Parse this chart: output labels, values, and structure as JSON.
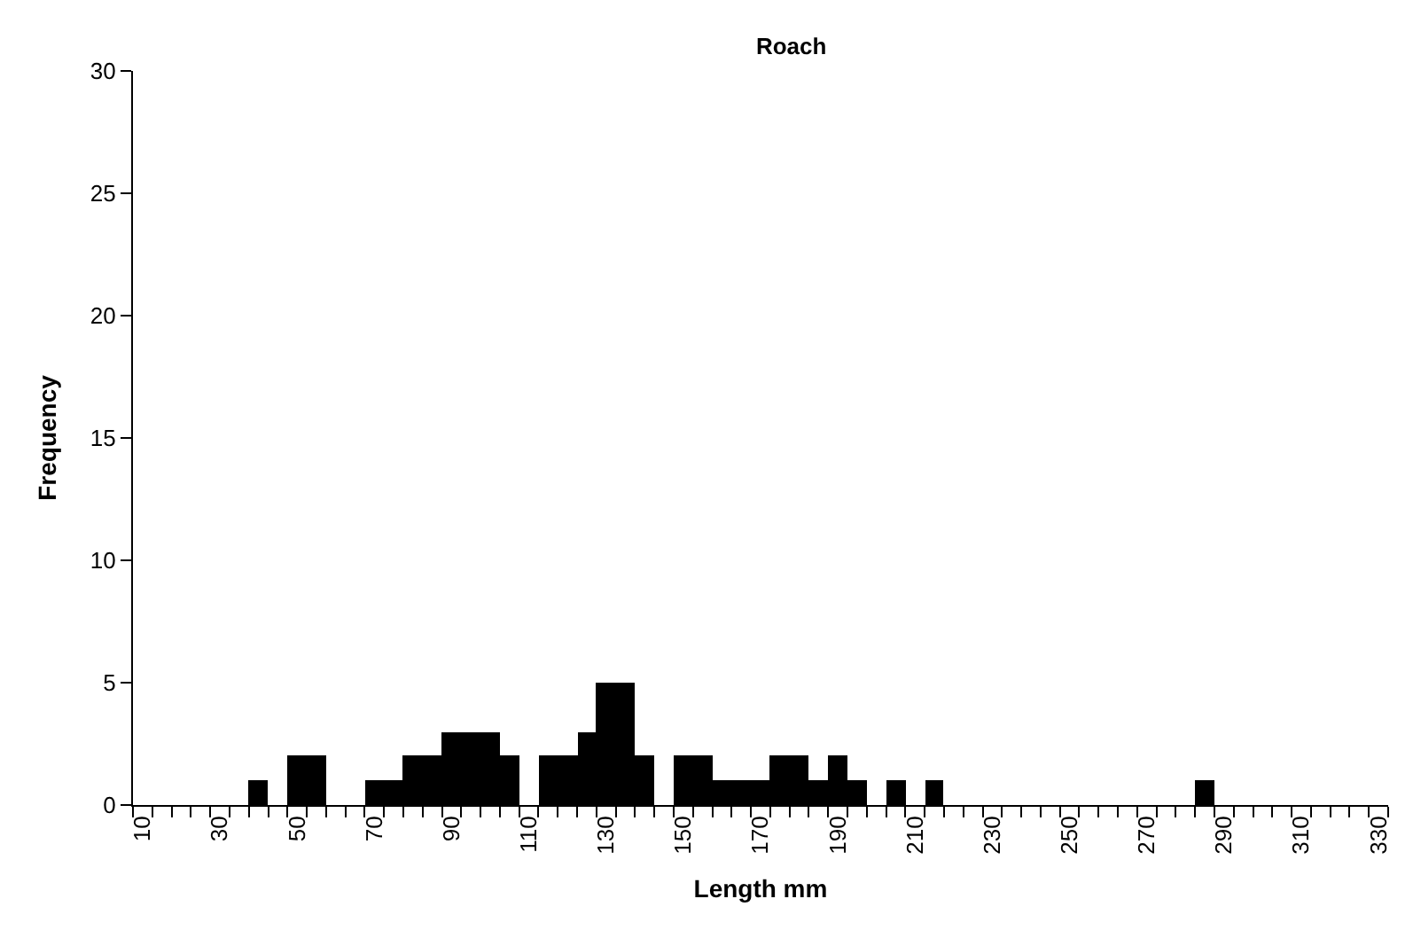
{
  "chart_data": {
    "type": "bar",
    "title": "Roach",
    "xlabel": "Length mm",
    "ylabel": "Frequency",
    "categories": [
      "10",
      null,
      null,
      null,
      "30",
      null,
      null,
      null,
      "50",
      null,
      null,
      null,
      "70",
      null,
      null,
      null,
      "90",
      null,
      null,
      null,
      "110",
      null,
      null,
      null,
      "130",
      null,
      null,
      null,
      "150",
      null,
      null,
      null,
      "170",
      null,
      null,
      null,
      "190",
      null,
      null,
      null,
      "210",
      null,
      null,
      null,
      "230",
      null,
      null,
      null,
      "250",
      null,
      null,
      null,
      "270",
      null,
      null,
      null,
      "290",
      null,
      null,
      null,
      "310",
      null,
      null,
      null,
      "330"
    ],
    "values": [
      0,
      0,
      0,
      0,
      0,
      0,
      1,
      0,
      2,
      2,
      0,
      0,
      1,
      1,
      2,
      2,
      3,
      3,
      3,
      2,
      0,
      2,
      2,
      3,
      5,
      5,
      2,
      0,
      2,
      2,
      1,
      1,
      1,
      2,
      2,
      1,
      2,
      1,
      0,
      1,
      0,
      1,
      0,
      0,
      0,
      0,
      0,
      0,
      0,
      0,
      0,
      0,
      0,
      0,
      0,
      1,
      0,
      0,
      0,
      0,
      0,
      0,
      0,
      0,
      0
    ],
    "color": "#000000",
    "ylim": [
      0,
      30
    ],
    "yticks": [
      0,
      5,
      10,
      15,
      20,
      25,
      30
    ]
  }
}
